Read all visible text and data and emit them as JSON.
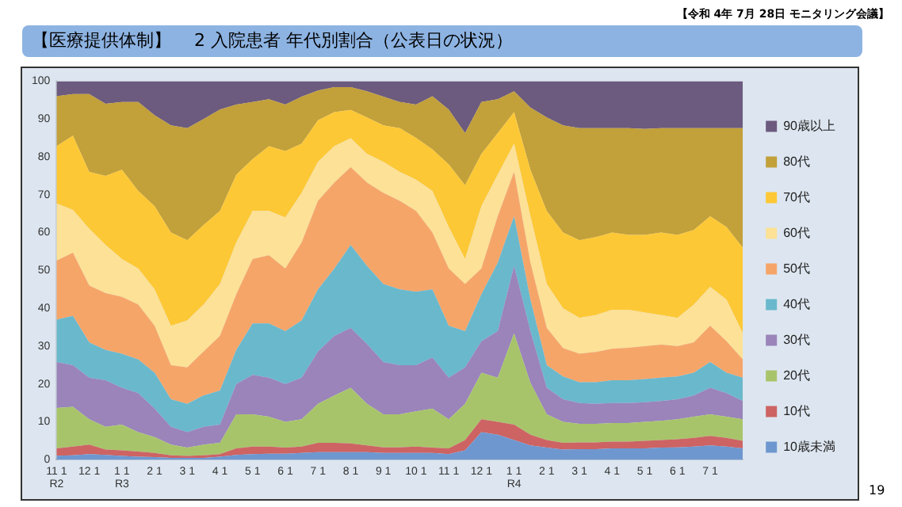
{
  "chart_data": {
    "type": "area",
    "stacked": true,
    "title": "【医療提供体制】　 2 入院患者 年代別割合（公表日の状況）",
    "annotations": [
      "【令和 4年 7月 28日 モニタリング会議】",
      "19"
    ],
    "categories": [
      "11 1\nR2",
      null,
      "12 1",
      null,
      "1 1\nR3",
      null,
      "2 1",
      null,
      "3 1",
      null,
      "4 1",
      null,
      "5 1",
      null,
      "6 1",
      null,
      "7 1",
      null,
      "8 1",
      null,
      "9 1",
      null,
      "10 1",
      null,
      "11 1",
      null,
      "12 1",
      null,
      "1 1\nR4",
      null,
      "2 1",
      null,
      "3 1",
      null,
      "4 1",
      null,
      "5 1",
      null,
      "6 1",
      null,
      "7 1",
      null,
      null
    ],
    "ylim": [
      0,
      100
    ],
    "yticks": [
      0,
      10,
      20,
      30,
      40,
      50,
      60,
      70,
      80,
      90,
      100
    ],
    "legend": "right",
    "series": [
      {
        "name": "10歳未満",
        "color": "#6f97cf",
        "values": [
          1.1,
          1.2,
          1.5,
          1.3,
          1,
          0.8,
          0.7,
          0.5,
          0.5,
          0.5,
          0.8,
          1.3,
          1.5,
          1.6,
          1.6,
          1.8,
          2,
          2,
          2,
          2,
          1.8,
          1.8,
          1.8,
          1.8,
          1.5,
          2.5,
          7.3,
          6.6,
          5.2,
          3.8,
          3.2,
          2.7,
          2.8,
          2.8,
          3,
          3,
          3,
          3.2,
          3.3,
          3.5,
          3.8,
          3.5,
          3
        ]
      },
      {
        "name": "10代",
        "color": "#cd6363",
        "values": [
          1.9,
          2.3,
          2.5,
          1.4,
          1.5,
          1.4,
          1.1,
          0.7,
          0.5,
          0.7,
          0.7,
          1.7,
          2,
          1.9,
          1.6,
          1.7,
          2.5,
          2.5,
          2.3,
          1.8,
          1.5,
          1.5,
          1.7,
          1.4,
          1.5,
          2.7,
          3.4,
          3.4,
          4.1,
          2.8,
          2,
          1.8,
          1.8,
          1.8,
          1.8,
          1.8,
          2,
          2,
          2.1,
          2.3,
          2.5,
          2.3,
          2
        ]
      },
      {
        "name": "20代",
        "color": "#a8c46a",
        "values": [
          10.7,
          10.5,
          6.7,
          6,
          6.8,
          5.1,
          4.2,
          2.8,
          2.2,
          2.8,
          3,
          9,
          8.5,
          7.9,
          6.8,
          7.2,
          10.3,
          12.5,
          14.7,
          11,
          8.7,
          8.7,
          9.3,
          10.3,
          7.7,
          9.6,
          12.3,
          11.7,
          24.1,
          13.7,
          6.8,
          5.5,
          4.9,
          4.9,
          4.9,
          4.9,
          5,
          5.1,
          5.3,
          5.6,
          5.7,
          5.6,
          5.7
        ]
      },
      {
        "name": "30代",
        "color": "#9a84ba",
        "values": [
          12.1,
          11,
          11,
          12.3,
          9.7,
          10.3,
          7.5,
          4.7,
          4.1,
          4.7,
          4.8,
          8,
          10.4,
          10.3,
          10,
          11,
          13.8,
          15.7,
          15.8,
          15.8,
          13.8,
          13,
          12.2,
          13.5,
          11,
          9.6,
          8.3,
          12.3,
          17.8,
          13.7,
          7,
          6,
          5.5,
          5.3,
          5.3,
          5.3,
          5.2,
          5.2,
          5.3,
          5.6,
          7,
          6.2,
          4.8
        ]
      },
      {
        "name": "40代",
        "color": "#6ab8cc",
        "values": [
          11.2,
          13,
          9.3,
          8,
          9,
          8.9,
          9.5,
          7.3,
          7.5,
          8.3,
          9,
          9,
          13.6,
          14.3,
          14,
          15.1,
          16.4,
          17.8,
          21.9,
          20.6,
          20.6,
          20,
          19.4,
          18,
          13.7,
          9.6,
          12.4,
          18,
          13.1,
          8.3,
          6,
          6,
          5.5,
          5.7,
          6,
          6,
          6.1,
          6.2,
          6,
          6,
          6.8,
          5.4,
          6.2
        ]
      },
      {
        "name": "50代",
        "color": "#f6a569",
        "values": [
          15.6,
          16.7,
          15,
          15,
          15,
          14.5,
          12.4,
          9,
          9.6,
          11.6,
          14.4,
          14.7,
          17,
          18,
          16.5,
          20.6,
          23.4,
          22.7,
          20.6,
          22,
          24.1,
          23.4,
          21.3,
          15,
          15.1,
          12.4,
          6.8,
          12.3,
          11.7,
          9.7,
          9.8,
          7.5,
          7.5,
          8,
          8.3,
          8.6,
          8.7,
          8.7,
          8,
          8,
          9.6,
          8.3,
          4.8
        ]
      },
      {
        "name": "60代",
        "color": "#fce196",
        "values": [
          15.1,
          11.3,
          15,
          12.7,
          10,
          9.5,
          9.6,
          10.4,
          12.4,
          12.4,
          13.7,
          13.7,
          12.7,
          11.7,
          13.5,
          13.1,
          10.3,
          9.6,
          7.6,
          7.6,
          8.2,
          7.6,
          8.3,
          11,
          11,
          6.6,
          16.5,
          11,
          7.5,
          12.3,
          11.6,
          10.5,
          9.5,
          9.7,
          10.3,
          10,
          8.9,
          7.8,
          7.5,
          10,
          10.3,
          11,
          6.9
        ]
      },
      {
        "name": "70代",
        "color": "#fdc835",
        "values": [
          15.1,
          19.6,
          15,
          18.3,
          23.6,
          20.5,
          22,
          24.6,
          21.2,
          21,
          19.3,
          17.9,
          13.7,
          17.1,
          17.5,
          13,
          11,
          9,
          7.5,
          9.6,
          9.6,
          11.6,
          11,
          11,
          16.5,
          19.5,
          13.8,
          11,
          8.3,
          12.3,
          19.3,
          20,
          20.5,
          20.6,
          20.4,
          19.8,
          20.5,
          21.8,
          21.9,
          19.7,
          18.6,
          19.2,
          22.6
        ]
      },
      {
        "name": "80代",
        "color": "#c2a03a",
        "values": [
          13.2,
          11,
          20.6,
          19,
          17.9,
          23.5,
          24,
          28.3,
          29.6,
          28,
          26.8,
          18.5,
          15.1,
          12.4,
          12.3,
          12.4,
          7.8,
          6.6,
          6,
          6.9,
          7.6,
          6.9,
          8.8,
          14,
          14.5,
          13.8,
          13.7,
          8.9,
          5.5,
          16.4,
          24.7,
          28.3,
          29.6,
          28.8,
          27.6,
          28.2,
          28,
          27.6,
          28.2,
          26.9,
          23.3,
          26.1,
          31.6
        ]
      },
      {
        "name": "90歳以上",
        "color": "#6c5b7e",
        "values": [
          4,
          3.4,
          3.4,
          6,
          5.5,
          5.5,
          9,
          11.7,
          12.4,
          10,
          7.5,
          6.2,
          5.5,
          4.8,
          6.2,
          4.1,
          2.5,
          1.6,
          1.6,
          2.7,
          4.1,
          5.5,
          6.2,
          4,
          7.5,
          13.7,
          5.5,
          4.8,
          2.7,
          7,
          9.6,
          11.7,
          12.4,
          12.4,
          12.4,
          12.4,
          12.6,
          12.4,
          12.4,
          12.4,
          12.4,
          12.4,
          12.4
        ]
      }
    ]
  }
}
